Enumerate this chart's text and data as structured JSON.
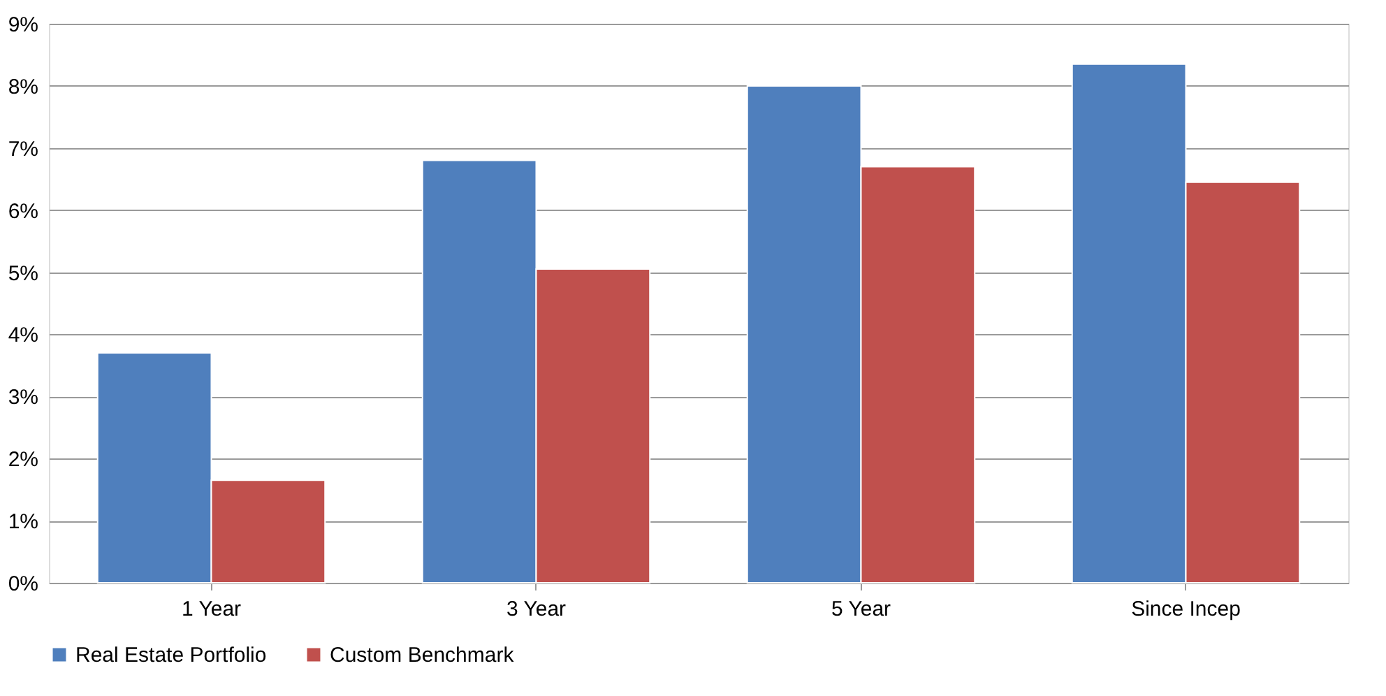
{
  "chart_data": {
    "type": "bar",
    "categories": [
      "1 Year",
      "3 Year",
      "5 Year",
      "Since Incep"
    ],
    "series": [
      {
        "name": "Real Estate Portfolio",
        "color": "#4f7fbd",
        "values": [
          3.7,
          6.8,
          8.0,
          8.35
        ]
      },
      {
        "name": "Custom Benchmark",
        "color": "#c0504d",
        "values": [
          1.65,
          5.05,
          6.7,
          6.45
        ]
      }
    ],
    "ylim": [
      0,
      9
    ],
    "yticks": [
      {
        "value": 0,
        "label": "0%"
      },
      {
        "value": 1,
        "label": "1%"
      },
      {
        "value": 2,
        "label": "2%"
      },
      {
        "value": 3,
        "label": "3%"
      },
      {
        "value": 4,
        "label": "4%"
      },
      {
        "value": 5,
        "label": "5%"
      },
      {
        "value": 6,
        "label": "6%"
      },
      {
        "value": 7,
        "label": "7%"
      },
      {
        "value": 8,
        "label": "8%"
      },
      {
        "value": 9,
        "label": "9%"
      }
    ],
    "grid": "y",
    "legend": "bottom"
  }
}
